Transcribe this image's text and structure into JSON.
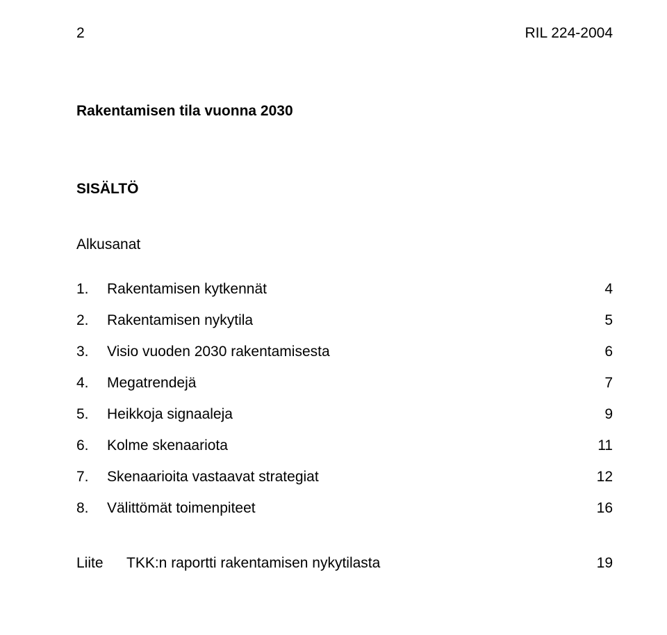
{
  "header": {
    "page_number": "2",
    "doc_code": "RIL 224-2004"
  },
  "title": "Rakentamisen tila vuonna 2030",
  "subtitle": "SISÄLTÖ",
  "foreword": "Alkusanat",
  "toc": [
    {
      "num": "1.",
      "label": "Rakentamisen kytkennät",
      "page": "4"
    },
    {
      "num": "2.",
      "label": "Rakentamisen nykytila",
      "page": "5"
    },
    {
      "num": "3.",
      "label": "Visio vuoden 2030 rakentamisesta",
      "page": "6"
    },
    {
      "num": "4.",
      "label": "Megatrendejä",
      "page": "7"
    },
    {
      "num": "5.",
      "label": "Heikkoja signaaleja",
      "page": "9"
    },
    {
      "num": "6.",
      "label": "Kolme skenaariota",
      "page": "11"
    },
    {
      "num": "7.",
      "label": "Skenaarioita vastaavat strategiat",
      "page": "12"
    },
    {
      "num": "8.",
      "label": "Välittömät toimenpiteet",
      "page": "16"
    }
  ],
  "appendix": {
    "token": "Liite",
    "label": "TKK:n raportti rakentamisen nykytilasta",
    "page": "19"
  },
  "style": {
    "background_color": "#ffffff",
    "text_color": "#000000",
    "font_family": "Arial",
    "font_size_pt": 16,
    "title_bold": true,
    "subtitle_bold": true
  }
}
